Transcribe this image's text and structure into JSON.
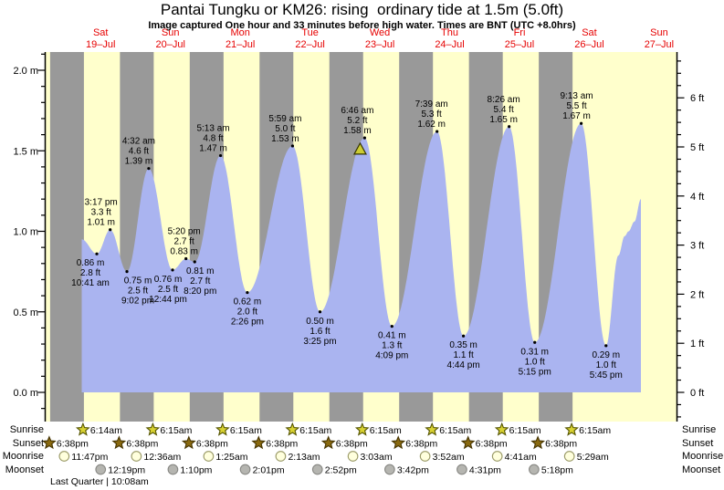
{
  "title": "Pantai Tungku or KM26: rising  ordinary tide at 1.5m (5.0ft)",
  "subtitle": "Image captured One hour and 33 minutes before high water. Times are BNT (UTC +8.0hrs)",
  "units": {
    "m": " m",
    "ft": " ft"
  },
  "colors": {
    "background": "#ffffff",
    "day_band": "#ffffcc",
    "night_band": "#999999",
    "tide_area": "#aab4f0",
    "day_label": "#e60000",
    "axis": "#000000",
    "label_text": "#000000",
    "marker_fill": "#cccc33",
    "marker_stroke": "#333300",
    "sunrise_star_fill": "#d9d232",
    "sunrise_star_stroke": "#555500",
    "sunset_star_fill": "#8a6a10",
    "sunset_star_stroke": "#443300",
    "moonrise_fill": "#ffffdd",
    "moonrise_stroke": "#999966",
    "moonset_fill": "#b5b5b0",
    "moonset_stroke": "#888884"
  },
  "chart_data": {
    "type": "area",
    "title": "Pantai Tungku or KM26: rising  ordinary tide at 1.5m (5.0ft)",
    "y_left_axis": {
      "unit": "m",
      "tick_values": [
        0.0,
        0.5,
        1.0,
        1.5,
        2.0
      ],
      "tick_labels": [
        "0.0 m",
        "0.5 m",
        "1.0 m",
        "1.5 m",
        "2.0 m"
      ],
      "minor_step": 0.1,
      "range_m": [
        -0.18,
        2.11
      ]
    },
    "y_right_axis": {
      "unit": "ft",
      "tick_values": [
        0,
        1,
        2,
        3,
        4,
        5,
        6
      ],
      "tick_labels": [
        "0 ft",
        "1 ft",
        "2 ft",
        "3 ft",
        "4 ft",
        "5 ft",
        "6 ft"
      ],
      "minor_step": 0.25,
      "range_ft": [
        -0.6,
        6.93
      ]
    },
    "days": [
      {
        "name": "Sat",
        "date": "19–Jul"
      },
      {
        "name": "Sun",
        "date": "20–Jul"
      },
      {
        "name": "Mon",
        "date": "21–Jul"
      },
      {
        "name": "Tue",
        "date": "22–Jul"
      },
      {
        "name": "Wed",
        "date": "23–Jul"
      },
      {
        "name": "Thu",
        "date": "24–Jul"
      },
      {
        "name": "Fri",
        "date": "25–Jul"
      },
      {
        "name": "Sat",
        "date": "26–Jul"
      },
      {
        "name": "Sun",
        "date": "27–Jul"
      }
    ],
    "tide_events": [
      {
        "day": 0,
        "time": "10:41 am",
        "height_m": "0.86",
        "height_ft": "2.8",
        "type": "low",
        "label_dx": -7
      },
      {
        "day": 0,
        "time": "3:17 pm",
        "height_m": "1.01",
        "height_ft": "3.3",
        "type": "high",
        "label_dx": -10
      },
      {
        "day": 0,
        "time": "9:02 pm",
        "height_m": "0.75",
        "height_ft": "2.5",
        "type": "low",
        "label_dx": 12
      },
      {
        "day": 1,
        "time": "4:32 am",
        "height_m": "1.39",
        "height_ft": "4.6",
        "type": "high",
        "label_dx": -11
      },
      {
        "day": 1,
        "time": "12:44 pm",
        "height_m": "0.76",
        "height_ft": "2.5",
        "type": "low",
        "label_dx": -5
      },
      {
        "day": 1,
        "time": "5:20 pm",
        "height_m": "0.83",
        "height_ft": "2.7",
        "type": "high",
        "label_dx": -2
      },
      {
        "day": 1,
        "time": "8:20 pm",
        "height_m": "0.81",
        "height_ft": "2.7",
        "type": "low",
        "label_dx": 6
      },
      {
        "day": 2,
        "time": "5:13 am",
        "height_m": "1.47",
        "height_ft": "4.8",
        "type": "high",
        "label_dx": -8
      },
      {
        "day": 2,
        "time": "2:26 pm",
        "height_m": "0.62",
        "height_ft": "2.0",
        "type": "low",
        "label_dx": 0
      },
      {
        "day": 3,
        "time": "5:59 am",
        "height_m": "1.53",
        "height_ft": "5.0",
        "type": "high",
        "label_dx": -8
      },
      {
        "day": 3,
        "time": "3:25 pm",
        "height_m": "0.50",
        "height_ft": "1.6",
        "type": "low",
        "label_dx": 0
      },
      {
        "day": 4,
        "time": "6:46 am",
        "height_m": "1.58",
        "height_ft": "5.2",
        "type": "high",
        "label_dx": -8,
        "capture_marker": true
      },
      {
        "day": 4,
        "time": "4:09 pm",
        "height_m": "0.41",
        "height_ft": "1.3",
        "type": "low",
        "label_dx": 0
      },
      {
        "day": 5,
        "time": "7:39 am",
        "height_m": "1.62",
        "height_ft": "5.3",
        "type": "high",
        "label_dx": -6
      },
      {
        "day": 5,
        "time": "4:44 pm",
        "height_m": "0.35",
        "height_ft": "1.1",
        "type": "low",
        "label_dx": 0
      },
      {
        "day": 6,
        "time": "8:26 am",
        "height_m": "1.65",
        "height_ft": "5.4",
        "type": "high",
        "label_dx": -6
      },
      {
        "day": 6,
        "time": "5:15 pm",
        "height_m": "0.31",
        "height_ft": "1.0",
        "type": "low",
        "label_dx": 0
      },
      {
        "day": 7,
        "time": "9:13 am",
        "height_m": "1.67",
        "height_ft": "5.5",
        "type": "high",
        "label_dx": -5
      },
      {
        "day": 7,
        "time": "5:45 pm",
        "height_m": "0.29",
        "height_ft": "1.0",
        "type": "low",
        "label_dx": 0
      }
    ],
    "curve_start": {
      "day": 0,
      "time": "5:30 am",
      "height_m": 0.95
    },
    "curve_end_points": [
      {
        "day": 7,
        "time": "10:00 pm",
        "height_m": 0.85
      },
      {
        "day": 8,
        "time": "12:10 am",
        "height_m": 0.97
      },
      {
        "day": 8,
        "time": "1:30 am",
        "height_m": 1.0
      },
      {
        "day": 8,
        "time": "3:30 am",
        "height_m": 1.06
      },
      {
        "day": 8,
        "time": "5:45 am",
        "height_m": 1.2
      }
    ],
    "current_time_marker": {
      "day": 4,
      "time": "5:13 am"
    }
  },
  "astro": {
    "right_labels": [
      "Sunrise",
      "Sunset",
      "Moonrise",
      "Moonset"
    ],
    "moon_phase": "Last Quarter | 10:08am",
    "sunrise": {
      "label": "Sunrise",
      "entries": [
        {
          "day": 0,
          "time": "6:14am"
        },
        {
          "day": 1,
          "time": "6:15am"
        },
        {
          "day": 2,
          "time": "6:15am"
        },
        {
          "day": 3,
          "time": "6:15am"
        },
        {
          "day": 4,
          "time": "6:15am"
        },
        {
          "day": 5,
          "time": "6:15am"
        },
        {
          "day": 6,
          "time": "6:15am"
        },
        {
          "day": 7,
          "time": "6:15am"
        }
      ]
    },
    "sunset": {
      "label": "Sunset",
      "entries": [
        {
          "day": -1,
          "time": "6:38pm"
        },
        {
          "day": 0,
          "time": "6:38pm"
        },
        {
          "day": 1,
          "time": "6:38pm"
        },
        {
          "day": 2,
          "time": "6:38pm"
        },
        {
          "day": 3,
          "time": "6:38pm"
        },
        {
          "day": 4,
          "time": "6:38pm"
        },
        {
          "day": 5,
          "time": "6:38pm"
        },
        {
          "day": 6,
          "time": "6:38pm"
        }
      ]
    },
    "moonrise": {
      "label": "Moonrise",
      "entries": [
        {
          "day": -1,
          "time": "11:47pm"
        },
        {
          "day": 1,
          "time": "12:36am"
        },
        {
          "day": 2,
          "time": "1:25am"
        },
        {
          "day": 3,
          "time": "2:13am"
        },
        {
          "day": 4,
          "time": "3:03am"
        },
        {
          "day": 5,
          "time": "3:52am"
        },
        {
          "day": 6,
          "time": "4:41am"
        },
        {
          "day": 7,
          "time": "5:29am"
        }
      ]
    },
    "moonset": {
      "label": "Moonset",
      "entries": [
        {
          "day": 0,
          "time": "12:19pm"
        },
        {
          "day": 1,
          "time": "1:10pm"
        },
        {
          "day": 2,
          "time": "2:01pm"
        },
        {
          "day": 3,
          "time": "2:52pm"
        },
        {
          "day": 4,
          "time": "3:42pm"
        },
        {
          "day": 5,
          "time": "4:31pm"
        },
        {
          "day": 6,
          "time": "5:18pm"
        }
      ]
    }
  }
}
